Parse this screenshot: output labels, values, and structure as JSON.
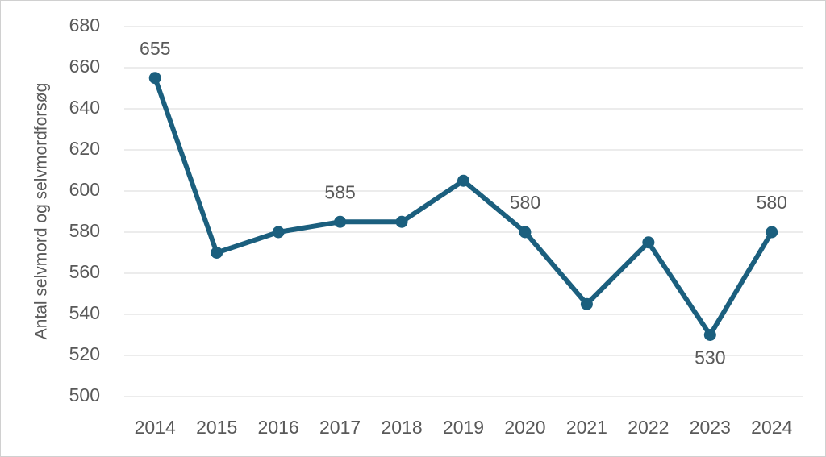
{
  "chart_data": {
    "type": "line",
    "y_label": "Antal selvmord og selvmordforsøg",
    "categories": [
      "2014",
      "2015",
      "2016",
      "2017",
      "2018",
      "2019",
      "2020",
      "2021",
      "2022",
      "2023",
      "2024"
    ],
    "series": [
      {
        "name": "Antal selvmord og selvmordforsøg",
        "color": "#1b5f7e",
        "values": [
          655,
          570,
          580,
          585,
          585,
          605,
          580,
          545,
          575,
          530,
          580
        ],
        "value_labels": [
          "655",
          null,
          null,
          "585",
          null,
          null,
          "580",
          null,
          null,
          "530",
          "580"
        ]
      }
    ],
    "ylim": [
      500,
      680
    ],
    "yticks": [
      500,
      520,
      540,
      560,
      580,
      600,
      620,
      640,
      660,
      680
    ],
    "grid": true
  }
}
